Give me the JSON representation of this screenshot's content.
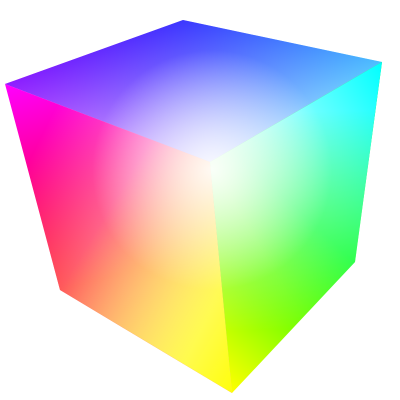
{
  "image": {
    "subject": "rgb-color-cube",
    "background": "#ffffff",
    "vertex_colors": {
      "front_bottom": "#ffff00",
      "front_top": "#ffffff",
      "left_top": "#ff00ff",
      "left_bottom": "#ff0000",
      "back_top": "#0000ff",
      "right_top": "#00ffff",
      "right_bottom": "#00ff00"
    }
  }
}
